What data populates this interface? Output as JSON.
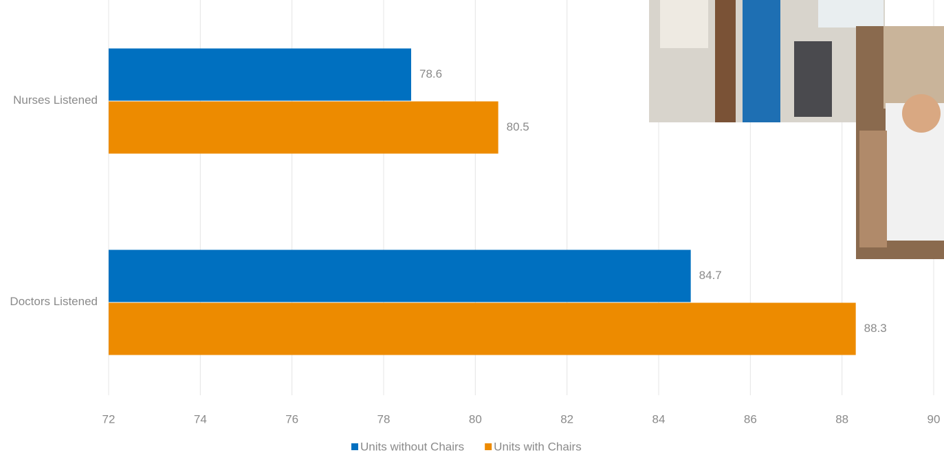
{
  "chart_data": {
    "type": "bar",
    "orientation": "horizontal",
    "categories": [
      "Nurses Listened",
      "Doctors Listened"
    ],
    "series": [
      {
        "name": "Units without Chairs",
        "color": "#0070c0",
        "values": [
          78.6,
          84.7
        ]
      },
      {
        "name": "Units with Chairs",
        "color": "#ed8b00",
        "values": [
          80.5,
          88.3
        ]
      }
    ],
    "xlim": [
      72,
      90
    ],
    "xticks": [
      72,
      74,
      76,
      78,
      80,
      82,
      84,
      86,
      88,
      90
    ],
    "grid": true,
    "legend": "bottom"
  }
}
